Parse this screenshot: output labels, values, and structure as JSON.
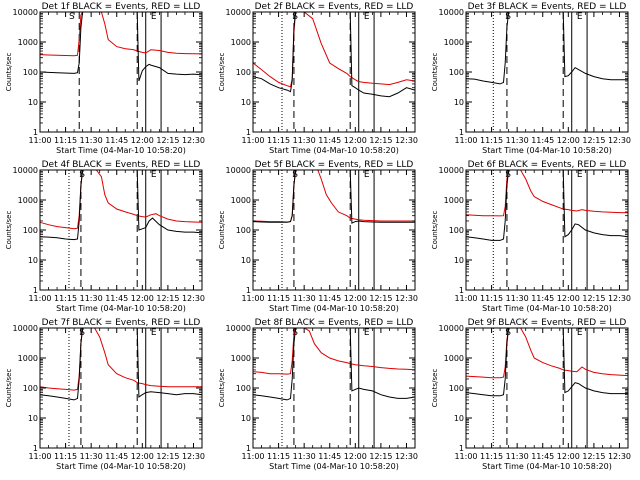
{
  "chart_data": {
    "type": "line",
    "y_scale": "log",
    "ylim": [
      1,
      10000
    ],
    "y_ticks": [
      1,
      10,
      100,
      1000,
      10000
    ],
    "y_tick_labels": [
      "1",
      "10",
      "100",
      "1000",
      "10000"
    ],
    "xlim_minutes": [
      0,
      95
    ],
    "x_tick_minutes": [
      0,
      15,
      30,
      45,
      60,
      75,
      90
    ],
    "x_tick_labels": [
      "11:00",
      "11:15",
      "11:30",
      "11:45",
      "12:00",
      "12:15",
      "12:30"
    ],
    "xlabel": "Start Time (04-Mar-10 10:58:20)",
    "ylabel": "Counts/sec",
    "series_colors": {
      "events": "#000000",
      "lld": "#e00000"
    },
    "panels": [
      {
        "title": "Det 1f BLACK = Events, RED = LLD",
        "markers": {
          "dotted": [],
          "dashed": [
            23,
            57
          ],
          "solid": [
            62,
            71
          ]
        },
        "marker_labels": [
          {
            "text": "S",
            "x": 17
          },
          {
            "text": "E",
            "x": 65
          }
        ],
        "events": {
          "x": [
            0,
            10,
            20,
            22,
            23,
            24,
            25,
            57,
            58,
            60,
            62,
            64,
            65,
            70,
            75,
            80,
            85,
            90,
            95
          ],
          "y": [
            100,
            95,
            90,
            95,
            200,
            3000,
            10000,
            10000,
            50,
            110,
            150,
            180,
            170,
            140,
            90,
            85,
            82,
            85,
            80
          ]
        },
        "lld": {
          "x": [
            0,
            5,
            10,
            15,
            20,
            22,
            23,
            24,
            25,
            36,
            38,
            40,
            45,
            50,
            55,
            57,
            60,
            62,
            65,
            70,
            75,
            80,
            85,
            90,
            95
          ],
          "y": [
            380,
            370,
            360,
            355,
            350,
            360,
            1200,
            8000,
            10000,
            10000,
            4000,
            1200,
            700,
            600,
            550,
            500,
            450,
            430,
            550,
            520,
            450,
            420,
            410,
            405,
            400
          ]
        }
      },
      {
        "title": "Det 2f BLACK = Events, RED = LLD",
        "markers": {
          "dotted": [
            17
          ],
          "dashed": [
            24,
            57
          ],
          "solid": [
            62,
            71
          ]
        },
        "marker_labels": [
          {
            "text": "S",
            "x": 23
          },
          {
            "text": "E",
            "x": 65
          }
        ],
        "events": {
          "x": [
            0,
            5,
            10,
            15,
            20,
            22,
            23,
            24,
            25,
            28,
            55,
            57,
            58,
            60,
            62,
            65,
            70,
            75,
            80,
            85,
            90,
            95
          ],
          "y": [
            70,
            60,
            40,
            30,
            25,
            22,
            50,
            3000,
            10000,
            10000,
            10000,
            10000,
            35,
            30,
            25,
            20,
            18,
            16,
            15,
            20,
            30,
            25
          ]
        },
        "lld": {
          "x": [
            0,
            5,
            10,
            15,
            20,
            22,
            23,
            24,
            25,
            30,
            35,
            40,
            45,
            50,
            55,
            57,
            60,
            62,
            65,
            70,
            75,
            80,
            85,
            90,
            95
          ],
          "y": [
            200,
            120,
            70,
            45,
            35,
            32,
            60,
            2000,
            10000,
            10000,
            6000,
            900,
            200,
            130,
            90,
            70,
            55,
            48,
            45,
            42,
            40,
            38,
            45,
            55,
            50
          ]
        }
      },
      {
        "title": "Det 3f BLACK = Events, RED = LLD",
        "markers": {
          "dotted": [
            16
          ],
          "dashed": [
            24,
            57
          ],
          "solid": [
            62,
            71
          ]
        },
        "marker_labels": [
          {
            "text": "S",
            "x": 23
          },
          {
            "text": "E",
            "x": 65
          }
        ],
        "events": {
          "x": [
            0,
            5,
            10,
            15,
            20,
            22,
            23,
            24,
            25,
            57,
            58,
            60,
            62,
            64,
            66,
            70,
            75,
            80,
            85,
            90,
            95
          ],
          "y": [
            60,
            58,
            50,
            45,
            40,
            45,
            200,
            3000,
            10000,
            10000,
            70,
            75,
            100,
            140,
            120,
            90,
            70,
            60,
            55,
            55,
            55
          ]
        },
        "lld": null
      },
      {
        "title": "Det 4f BLACK = Events, RED = LLD",
        "markers": {
          "dotted": [
            17
          ],
          "dashed": [
            24,
            57
          ],
          "solid": [
            62,
            71
          ]
        },
        "marker_labels": [
          {
            "text": "S",
            "x": 23
          },
          {
            "text": "E",
            "x": 65
          }
        ],
        "events": {
          "x": [
            0,
            5,
            10,
            15,
            20,
            22,
            23,
            24,
            25,
            57,
            58,
            60,
            62,
            64,
            66,
            70,
            75,
            80,
            85,
            90,
            95
          ],
          "y": [
            60,
            58,
            55,
            50,
            48,
            50,
            200,
            3000,
            10000,
            10000,
            100,
            110,
            120,
            200,
            250,
            150,
            100,
            90,
            85,
            85,
            80
          ]
        },
        "lld": {
          "x": [
            0,
            5,
            10,
            15,
            20,
            22,
            23,
            24,
            25,
            33,
            36,
            38,
            40,
            45,
            50,
            55,
            57,
            60,
            62,
            65,
            68,
            70,
            75,
            80,
            85,
            90,
            95
          ],
          "y": [
            180,
            150,
            130,
            120,
            110,
            115,
            300,
            3000,
            10000,
            10000,
            6000,
            1500,
            800,
            500,
            400,
            330,
            300,
            280,
            270,
            320,
            350,
            300,
            230,
            200,
            190,
            185,
            180
          ]
        }
      },
      {
        "title": "Det 5f BLACK = Events, RED = LLD",
        "markers": {
          "dotted": [
            17
          ],
          "dashed": [
            24,
            57
          ],
          "solid": [
            62,
            71
          ]
        },
        "marker_labels": [
          {
            "text": "S",
            "x": 23
          },
          {
            "text": "E",
            "x": 65
          }
        ],
        "events": {
          "x": [
            0,
            5,
            10,
            15,
            20,
            22,
            23,
            24,
            25,
            55,
            57,
            58,
            60,
            62,
            65,
            70,
            75,
            80,
            85,
            90,
            95
          ],
          "y": [
            190,
            185,
            180,
            180,
            180,
            190,
            300,
            3000,
            10000,
            10000,
            10000,
            170,
            190,
            200,
            190,
            185,
            180,
            180,
            180,
            180,
            180
          ]
        },
        "lld": {
          "x": [
            0,
            5,
            10,
            15,
            20,
            22,
            23,
            24,
            25,
            38,
            40,
            43,
            46,
            50,
            55,
            57,
            60,
            62,
            65,
            70,
            75,
            80,
            85,
            90,
            95
          ],
          "y": [
            200,
            195,
            190,
            190,
            185,
            190,
            300,
            3000,
            10000,
            10000,
            5000,
            1500,
            800,
            400,
            300,
            250,
            230,
            220,
            210,
            205,
            200,
            200,
            200,
            200,
            200
          ]
        }
      },
      {
        "title": "Det 6f BLACK = Events, RED = LLD",
        "markers": {
          "dotted": [
            16
          ],
          "dashed": [
            24,
            57
          ],
          "solid": [
            62,
            71
          ]
        },
        "marker_labels": [
          {
            "text": "S",
            "x": 23
          },
          {
            "text": "E",
            "x": 65
          }
        ],
        "events": {
          "x": [
            0,
            5,
            10,
            15,
            20,
            22,
            23,
            24,
            25,
            57,
            58,
            60,
            62,
            64,
            66,
            70,
            75,
            80,
            85,
            90,
            95
          ],
          "y": [
            60,
            55,
            50,
            45,
            45,
            50,
            200,
            3000,
            10000,
            10000,
            60,
            70,
            100,
            160,
            150,
            100,
            80,
            70,
            65,
            65,
            60
          ]
        },
        "lld": {
          "x": [
            0,
            5,
            10,
            15,
            20,
            22,
            23,
            24,
            25,
            32,
            35,
            38,
            40,
            45,
            50,
            55,
            57,
            60,
            62,
            65,
            68,
            70,
            75,
            80,
            85,
            90,
            95
          ],
          "y": [
            320,
            310,
            300,
            300,
            295,
            300,
            600,
            5000,
            10000,
            10000,
            5000,
            2000,
            1300,
            900,
            700,
            550,
            500,
            480,
            450,
            430,
            480,
            450,
            420,
            400,
            390,
            380,
            375
          ]
        }
      },
      {
        "title": "Det 7f BLACK = Events, RED = LLD",
        "markers": {
          "dotted": [
            17
          ],
          "dashed": [
            24,
            57
          ],
          "solid": [
            62,
            71
          ]
        },
        "marker_labels": [
          {
            "text": "S",
            "x": 23
          },
          {
            "text": "E",
            "x": 65
          }
        ],
        "events": {
          "x": [
            0,
            5,
            10,
            15,
            20,
            22,
            23,
            24,
            25,
            57,
            58,
            60,
            62,
            65,
            70,
            75,
            80,
            85,
            90,
            95
          ],
          "y": [
            60,
            55,
            50,
            45,
            40,
            45,
            200,
            3000,
            10000,
            10000,
            50,
            60,
            70,
            75,
            70,
            65,
            60,
            65,
            65,
            60
          ]
        },
        "lld": {
          "x": [
            0,
            5,
            10,
            15,
            20,
            22,
            23,
            24,
            25,
            32,
            35,
            38,
            40,
            45,
            50,
            55,
            57,
            60,
            62,
            65,
            70,
            75,
            80,
            85,
            90,
            95
          ],
          "y": [
            110,
            100,
            95,
            90,
            85,
            90,
            250,
            3000,
            10000,
            10000,
            5000,
            1500,
            600,
            300,
            220,
            180,
            150,
            140,
            130,
            120,
            115,
            110,
            110,
            110,
            110,
            110
          ]
        }
      },
      {
        "title": "Det 8f BLACK = Events, RED = LLD",
        "markers": {
          "dotted": [
            17
          ],
          "dashed": [
            24,
            57
          ],
          "solid": [
            62,
            71
          ]
        },
        "marker_labels": [
          {
            "text": "S",
            "x": 23
          },
          {
            "text": "E",
            "x": 65
          }
        ],
        "events": {
          "x": [
            0,
            5,
            10,
            15,
            20,
            22,
            23,
            24,
            25,
            55,
            57,
            58,
            60,
            62,
            65,
            70,
            75,
            80,
            85,
            90,
            95
          ],
          "y": [
            60,
            55,
            50,
            45,
            40,
            45,
            200,
            3000,
            10000,
            10000,
            10000,
            80,
            90,
            100,
            90,
            80,
            60,
            50,
            45,
            45,
            50
          ]
        },
        "lld": {
          "x": [
            0,
            5,
            10,
            15,
            20,
            22,
            23,
            24,
            25,
            30,
            33,
            36,
            40,
            45,
            50,
            55,
            57,
            60,
            62,
            65,
            70,
            75,
            80,
            85,
            90,
            95
          ],
          "y": [
            350,
            330,
            300,
            300,
            290,
            300,
            800,
            6000,
            10000,
            10000,
            8000,
            3000,
            1500,
            1000,
            800,
            700,
            650,
            600,
            580,
            550,
            520,
            480,
            450,
            430,
            420,
            400
          ]
        }
      },
      {
        "title": "Det 9f BLACK = Events, RED = LLD",
        "markers": {
          "dotted": [
            16
          ],
          "dashed": [
            24,
            57
          ],
          "solid": [
            62,
            71
          ]
        },
        "marker_labels": [
          {
            "text": "S",
            "x": 23
          },
          {
            "text": "E",
            "x": 65
          }
        ],
        "events": {
          "x": [
            0,
            5,
            10,
            15,
            20,
            22,
            23,
            24,
            25,
            57,
            58,
            60,
            62,
            64,
            66,
            70,
            75,
            80,
            85,
            90,
            95
          ],
          "y": [
            70,
            65,
            60,
            55,
            55,
            60,
            200,
            3000,
            10000,
            10000,
            70,
            80,
            110,
            150,
            140,
            100,
            80,
            70,
            65,
            65,
            65
          ]
        },
        "lld": {
          "x": [
            0,
            5,
            10,
            15,
            20,
            22,
            23,
            24,
            25,
            32,
            35,
            38,
            40,
            45,
            50,
            55,
            57,
            60,
            62,
            65,
            68,
            70,
            75,
            80,
            85,
            90,
            95
          ],
          "y": [
            250,
            240,
            230,
            220,
            220,
            230,
            500,
            4000,
            10000,
            10000,
            5000,
            1800,
            1000,
            700,
            550,
            450,
            400,
            380,
            360,
            350,
            500,
            420,
            330,
            300,
            280,
            270,
            260
          ]
        }
      }
    ]
  }
}
